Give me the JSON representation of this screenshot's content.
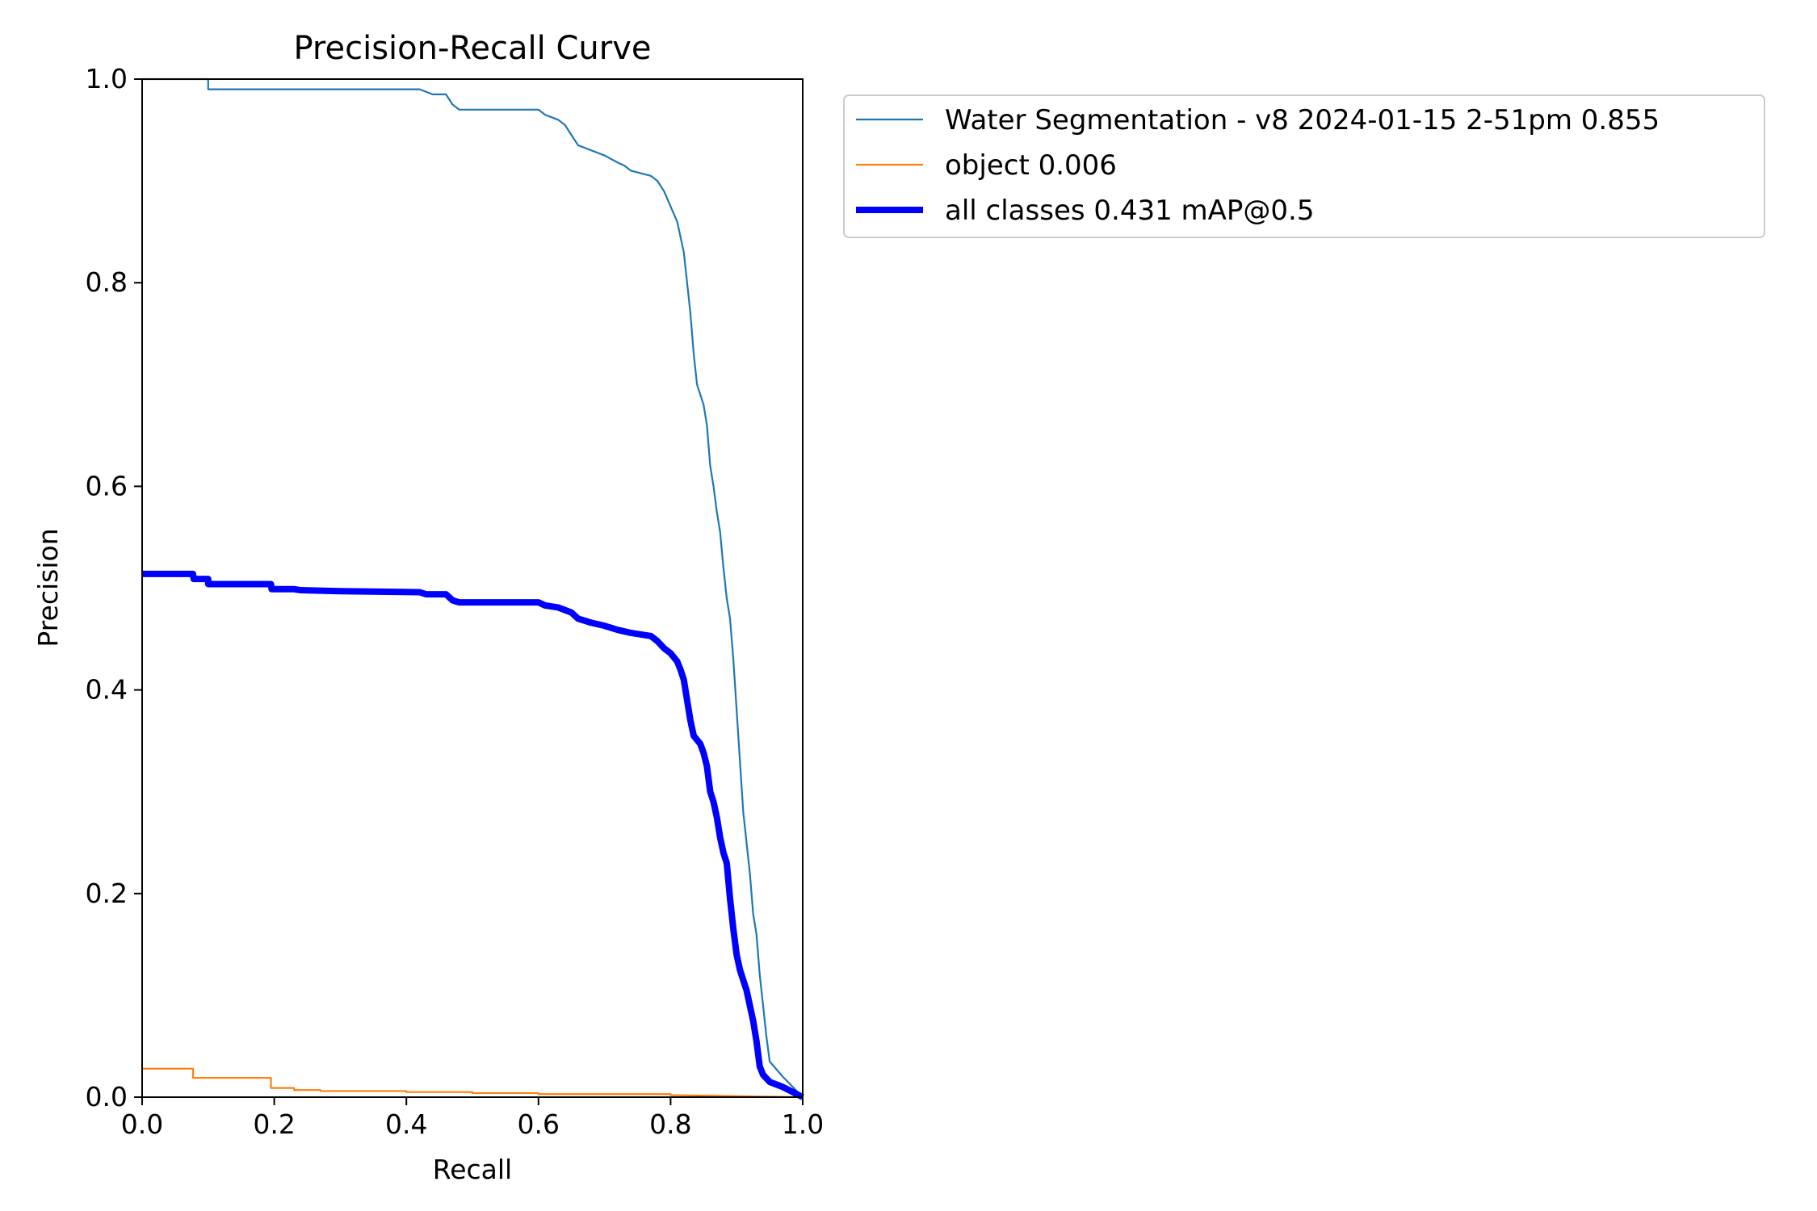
{
  "chart_data": {
    "type": "line",
    "title": "Precision-Recall Curve",
    "xlabel": "Recall",
    "ylabel": "Precision",
    "xlim": [
      0.0,
      1.0
    ],
    "ylim": [
      0.0,
      1.0
    ],
    "xticks": [
      "0.0",
      "0.2",
      "0.4",
      "0.6",
      "0.8",
      "1.0"
    ],
    "yticks": [
      "0.0",
      "0.2",
      "0.4",
      "0.6",
      "0.8",
      "1.0"
    ],
    "grid": false,
    "legend_placement": "outside-top-right",
    "series": [
      {
        "name": "Water Segmentation - v8 2024-01-15 2-51pm 0.855",
        "color": "#1f77b4",
        "style": "thin",
        "points": [
          [
            0.0,
            1.0
          ],
          [
            0.1,
            1.0
          ],
          [
            0.1,
            0.99
          ],
          [
            0.26,
            0.99
          ],
          [
            0.42,
            0.99
          ],
          [
            0.44,
            0.985
          ],
          [
            0.46,
            0.985
          ],
          [
            0.47,
            0.975
          ],
          [
            0.48,
            0.97
          ],
          [
            0.6,
            0.97
          ],
          [
            0.61,
            0.965
          ],
          [
            0.63,
            0.96
          ],
          [
            0.64,
            0.955
          ],
          [
            0.65,
            0.945
          ],
          [
            0.66,
            0.935
          ],
          [
            0.68,
            0.93
          ],
          [
            0.7,
            0.925
          ],
          [
            0.72,
            0.918
          ],
          [
            0.73,
            0.915
          ],
          [
            0.74,
            0.91
          ],
          [
            0.77,
            0.905
          ],
          [
            0.78,
            0.9
          ],
          [
            0.79,
            0.89
          ],
          [
            0.8,
            0.875
          ],
          [
            0.81,
            0.86
          ],
          [
            0.815,
            0.845
          ],
          [
            0.82,
            0.83
          ],
          [
            0.825,
            0.8
          ],
          [
            0.83,
            0.77
          ],
          [
            0.835,
            0.73
          ],
          [
            0.84,
            0.7
          ],
          [
            0.85,
            0.68
          ],
          [
            0.855,
            0.66
          ],
          [
            0.86,
            0.62
          ],
          [
            0.865,
            0.6
          ],
          [
            0.87,
            0.575
          ],
          [
            0.875,
            0.555
          ],
          [
            0.88,
            0.52
          ],
          [
            0.885,
            0.49
          ],
          [
            0.89,
            0.47
          ],
          [
            0.895,
            0.43
          ],
          [
            0.9,
            0.38
          ],
          [
            0.905,
            0.33
          ],
          [
            0.91,
            0.28
          ],
          [
            0.915,
            0.25
          ],
          [
            0.92,
            0.22
          ],
          [
            0.925,
            0.18
          ],
          [
            0.93,
            0.16
          ],
          [
            0.935,
            0.12
          ],
          [
            0.94,
            0.09
          ],
          [
            0.945,
            0.06
          ],
          [
            0.95,
            0.035
          ],
          [
            0.97,
            0.02
          ],
          [
            1.0,
            0.0
          ]
        ]
      },
      {
        "name": "object 0.006",
        "color": "#ff7f0e",
        "style": "thin",
        "points": [
          [
            0.0,
            0.028
          ],
          [
            0.077,
            0.028
          ],
          [
            0.077,
            0.019
          ],
          [
            0.195,
            0.019
          ],
          [
            0.195,
            0.009
          ],
          [
            0.23,
            0.009
          ],
          [
            0.23,
            0.007
          ],
          [
            0.27,
            0.007
          ],
          [
            0.27,
            0.006
          ],
          [
            0.4,
            0.006
          ],
          [
            0.4,
            0.005
          ],
          [
            0.5,
            0.005
          ],
          [
            0.5,
            0.004
          ],
          [
            0.6,
            0.004
          ],
          [
            0.6,
            0.003
          ],
          [
            0.8,
            0.003
          ],
          [
            0.8,
            0.002
          ],
          [
            1.0,
            0.0
          ]
        ]
      },
      {
        "name": "all classes 0.431 mAP@0.5",
        "color": "#0000ff",
        "style": "thick",
        "points": [
          [
            0.0,
            0.514
          ],
          [
            0.077,
            0.514
          ],
          [
            0.078,
            0.509
          ],
          [
            0.1,
            0.509
          ],
          [
            0.1,
            0.504
          ],
          [
            0.195,
            0.504
          ],
          [
            0.196,
            0.499
          ],
          [
            0.23,
            0.499
          ],
          [
            0.24,
            0.498
          ],
          [
            0.3,
            0.497
          ],
          [
            0.42,
            0.496
          ],
          [
            0.43,
            0.494
          ],
          [
            0.46,
            0.494
          ],
          [
            0.47,
            0.488
          ],
          [
            0.48,
            0.486
          ],
          [
            0.6,
            0.486
          ],
          [
            0.61,
            0.483
          ],
          [
            0.63,
            0.481
          ],
          [
            0.65,
            0.476
          ],
          [
            0.66,
            0.47
          ],
          [
            0.68,
            0.466
          ],
          [
            0.7,
            0.463
          ],
          [
            0.72,
            0.459
          ],
          [
            0.74,
            0.456
          ],
          [
            0.77,
            0.453
          ],
          [
            0.78,
            0.448
          ],
          [
            0.79,
            0.441
          ],
          [
            0.8,
            0.436
          ],
          [
            0.81,
            0.428
          ],
          [
            0.815,
            0.42
          ],
          [
            0.82,
            0.41
          ],
          [
            0.825,
            0.39
          ],
          [
            0.83,
            0.37
          ],
          [
            0.835,
            0.355
          ],
          [
            0.845,
            0.347
          ],
          [
            0.85,
            0.338
          ],
          [
            0.855,
            0.325
          ],
          [
            0.86,
            0.3
          ],
          [
            0.865,
            0.29
          ],
          [
            0.87,
            0.275
          ],
          [
            0.875,
            0.255
          ],
          [
            0.88,
            0.24
          ],
          [
            0.885,
            0.23
          ],
          [
            0.89,
            0.195
          ],
          [
            0.895,
            0.165
          ],
          [
            0.9,
            0.14
          ],
          [
            0.905,
            0.125
          ],
          [
            0.91,
            0.115
          ],
          [
            0.915,
            0.105
          ],
          [
            0.92,
            0.09
          ],
          [
            0.925,
            0.075
          ],
          [
            0.93,
            0.055
          ],
          [
            0.935,
            0.03
          ],
          [
            0.94,
            0.022
          ],
          [
            0.95,
            0.015
          ],
          [
            0.97,
            0.01
          ],
          [
            1.0,
            0.0
          ]
        ]
      }
    ]
  }
}
